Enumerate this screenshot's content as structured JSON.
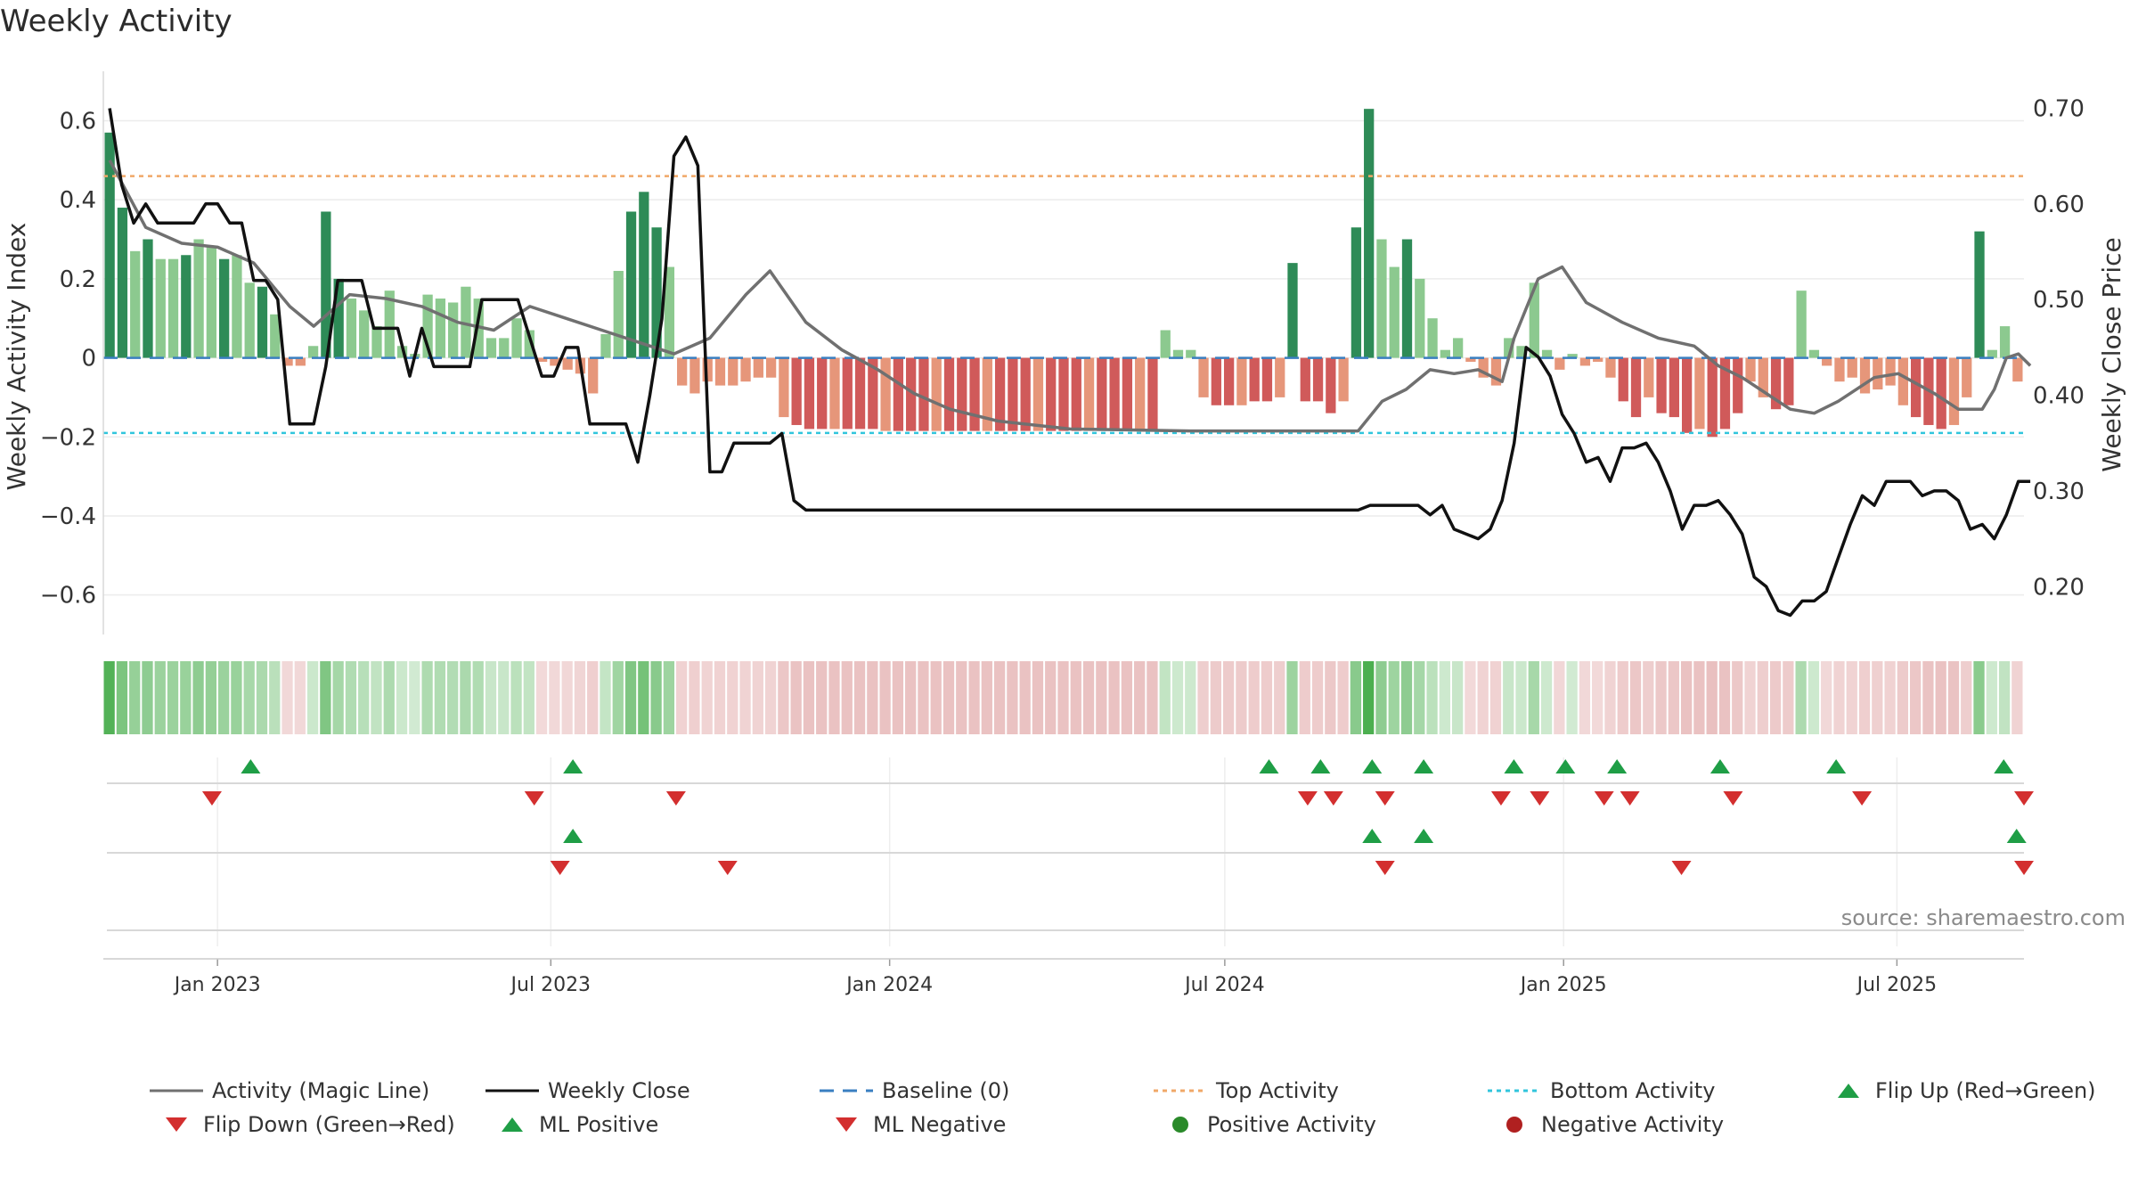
{
  "title": "Weekly Activity",
  "source_text": "source: sharemaestro.com",
  "colors": {
    "green_strong": "#2e8b57",
    "green_light": "#8cc98f",
    "red_strong": "#d05a5a",
    "red_light": "#e6967a",
    "magic_line": "#707070",
    "close_line": "#111111",
    "baseline": "#3a7fc1",
    "top_line": "#f0a868",
    "bottom_line": "#31c5dc",
    "flip_up": "#1f9e46",
    "flip_down": "#d32f2f"
  },
  "legend": [
    {
      "key": "magic",
      "label": "Activity (Magic Line)"
    },
    {
      "key": "close",
      "label": "Weekly Close"
    },
    {
      "key": "baseline",
      "label": "Baseline (0)"
    },
    {
      "key": "top",
      "label": "Top Activity"
    },
    {
      "key": "bottom",
      "label": "Bottom Activity"
    },
    {
      "key": "flipup",
      "label": "Flip Up (Red→Green)"
    },
    {
      "key": "flipdown",
      "label": "Flip Down (Green→Red)"
    },
    {
      "key": "mlpos",
      "label": "ML Positive"
    },
    {
      "key": "mlneg",
      "label": "ML Negative"
    },
    {
      "key": "posact",
      "label": "Positive Activity"
    },
    {
      "key": "negact",
      "label": "Negative Activity"
    }
  ],
  "chart_data": {
    "type": "bar",
    "title": "Weekly Activity",
    "ylabel": "Weekly Activity Index",
    "y2label": "Weekly Close Price",
    "ylim": [
      -0.7,
      0.68
    ],
    "y2lim": [
      0.15,
      0.72
    ],
    "yticks": [
      0.6,
      0.4,
      0.2,
      0,
      -0.2,
      -0.4,
      -0.6
    ],
    "ytick_labels": [
      "0.6",
      "0.4",
      "0.2",
      "0",
      "−0.2",
      "−0.4",
      "−0.6"
    ],
    "y2ticks": [
      0.7,
      0.6,
      0.5,
      0.4,
      0.3,
      0.2
    ],
    "y2tick_labels": [
      "0.70",
      "0.60",
      "0.50",
      "0.40",
      "0.30",
      "0.20"
    ],
    "x_range": [
      "2022-10-31",
      "2025-09-08"
    ],
    "xticks": [
      "2023-01-01",
      "2023-07-01",
      "2024-01-01",
      "2024-07-01",
      "2025-01-01",
      "2025-07-01"
    ],
    "xtick_labels": [
      "Jan 2023",
      "Jul 2023",
      "Jan 2024",
      "Jul 2024",
      "Jan 2025",
      "Jul 2025"
    ],
    "top_activity": 0.46,
    "bottom_activity": -0.19,
    "baseline": 0,
    "week_count": 158,
    "activity_segments": [
      [
        0.57,
        0.38,
        0.27,
        0.3,
        0.25,
        0.25,
        0.26,
        0.3,
        0.28,
        0.25,
        0.26,
        0.19,
        0.18,
        0.11
      ],
      [
        -0.02,
        -0.02,
        0.03,
        0.37,
        0.2,
        0.15,
        0.12,
        0.08,
        0.17,
        0.03,
        0.01
      ],
      [
        0.16,
        0.15,
        0.14,
        0.18,
        0.15,
        0.05,
        0.05,
        0.1,
        0.07
      ],
      [
        -0.01,
        -0.02,
        -0.03,
        -0.04,
        -0.09,
        0.06,
        0.22,
        0.37,
        0.42,
        0.33,
        0.23
      ],
      [
        -0.07,
        -0.09,
        -0.06,
        -0.07,
        -0.07,
        -0.06,
        -0.05,
        -0.05,
        -0.15,
        -0.17,
        -0.18,
        -0.18,
        -0.18,
        -0.18,
        -0.18,
        -0.18
      ],
      "flat:-0.185:22",
      [
        0.07,
        0.02,
        0.02,
        -0.1,
        -0.12,
        -0.12,
        -0.12,
        -0.11,
        -0.11,
        -0.1,
        0.24,
        -0.11,
        -0.11,
        -0.14,
        -0.11,
        0.33,
        0.63,
        0.3,
        0.23,
        0.3,
        0.2,
        0.1,
        0.02,
        0.05,
        -0.01
      ],
      [
        -0.05,
        -0.07,
        0.05,
        0.03,
        0.19,
        0.02,
        -0.03,
        0.01,
        -0.02,
        -0.01,
        -0.05,
        -0.11,
        -0.15,
        -0.1,
        -0.14,
        -0.15,
        -0.19,
        -0.18,
        -0.2,
        -0.18,
        -0.14,
        -0.06,
        -0.1,
        -0.13,
        -0.12,
        0.17,
        0.02,
        -0.02,
        -0.06,
        -0.05,
        -0.09,
        -0.08,
        -0.07,
        -0.12,
        -0.15,
        -0.17,
        -0.18,
        -0.17,
        -0.1,
        0.32,
        0.02,
        0.08,
        -0.06
      ]
    ],
    "magic_line": [
      {
        "week": 0,
        "v": 0.5
      },
      {
        "week": 3,
        "v": 0.33
      },
      {
        "week": 6,
        "v": 0.29
      },
      {
        "week": 9,
        "v": 0.28
      },
      {
        "week": 12,
        "v": 0.24
      },
      {
        "week": 15,
        "v": 0.13
      },
      {
        "week": 17,
        "v": 0.08
      },
      {
        "week": 20,
        "v": 0.16
      },
      {
        "week": 23,
        "v": 0.15
      },
      {
        "week": 26,
        "v": 0.13
      },
      {
        "week": 29,
        "v": 0.09
      },
      {
        "week": 32,
        "v": 0.07
      },
      {
        "week": 35,
        "v": 0.13
      },
      {
        "week": 38,
        "v": 0.1
      },
      {
        "week": 41,
        "v": 0.07
      },
      {
        "week": 44,
        "v": 0.04
      },
      {
        "week": 47,
        "v": 0.01
      },
      {
        "week": 50,
        "v": 0.05
      },
      {
        "week": 53,
        "v": 0.16
      },
      {
        "week": 55,
        "v": 0.22
      },
      {
        "week": 58,
        "v": 0.09
      },
      {
        "week": 61,
        "v": 0.02
      },
      {
        "week": 64,
        "v": -0.03
      },
      {
        "week": 67,
        "v": -0.09
      },
      {
        "week": 70,
        "v": -0.13
      },
      {
        "week": 74,
        "v": -0.16
      },
      {
        "week": 80,
        "v": -0.18
      },
      {
        "week": 90,
        "v": -0.185
      },
      {
        "week": 104,
        "v": -0.185
      },
      {
        "week": 106,
        "v": -0.11
      },
      {
        "week": 108,
        "v": -0.08
      },
      {
        "week": 110,
        "v": -0.03
      },
      {
        "week": 112,
        "v": -0.04
      },
      {
        "week": 114,
        "v": -0.03
      },
      {
        "week": 116,
        "v": -0.06
      },
      {
        "week": 117,
        "v": 0.05
      },
      {
        "week": 119,
        "v": 0.2
      },
      {
        "week": 121,
        "v": 0.23
      },
      {
        "week": 123,
        "v": 0.14
      },
      {
        "week": 126,
        "v": 0.09
      },
      {
        "week": 129,
        "v": 0.05
      },
      {
        "week": 132,
        "v": 0.03
      },
      {
        "week": 134,
        "v": -0.02
      },
      {
        "week": 136,
        "v": -0.05
      },
      {
        "week": 138,
        "v": -0.09
      },
      {
        "week": 140,
        "v": -0.13
      },
      {
        "week": 142,
        "v": -0.14
      },
      {
        "week": 144,
        "v": -0.11
      },
      {
        "week": 147,
        "v": -0.05
      },
      {
        "week": 149,
        "v": -0.04
      },
      {
        "week": 152,
        "v": -0.09
      },
      {
        "week": 154,
        "v": -0.13
      },
      {
        "week": 156,
        "v": -0.13
      },
      {
        "week": 157,
        "v": -0.08
      },
      {
        "week": 158,
        "v": 0.0
      },
      {
        "week": 159,
        "v": 0.01
      },
      {
        "week": 160,
        "v": -0.02
      }
    ],
    "weekly_close": [
      {
        "week": 0,
        "v": 0.7
      },
      {
        "week": 1,
        "v": 0.62
      },
      {
        "week": 2,
        "v": 0.58
      },
      {
        "week": 3,
        "v": 0.6
      },
      {
        "week": 4,
        "v": 0.58
      },
      {
        "week": 7,
        "v": 0.58
      },
      {
        "week": 8,
        "v": 0.6
      },
      {
        "week": 9,
        "v": 0.6
      },
      {
        "week": 10,
        "v": 0.58
      },
      {
        "week": 11,
        "v": 0.58
      },
      {
        "week": 12,
        "v": 0.52
      },
      {
        "week": 13,
        "v": 0.52
      },
      {
        "week": 14,
        "v": 0.5
      },
      {
        "week": 15,
        "v": 0.37
      },
      {
        "week": 17,
        "v": 0.37
      },
      {
        "week": 18,
        "v": 0.43
      },
      {
        "week": 19,
        "v": 0.52
      },
      {
        "week": 20,
        "v": 0.52
      },
      {
        "week": 21,
        "v": 0.52
      },
      {
        "week": 22,
        "v": 0.47
      },
      {
        "week": 24,
        "v": 0.47
      },
      {
        "week": 25,
        "v": 0.42
      },
      {
        "week": 26,
        "v": 0.47
      },
      {
        "week": 27,
        "v": 0.43
      },
      {
        "week": 28,
        "v": 0.43
      },
      {
        "week": 30,
        "v": 0.43
      },
      {
        "week": 31,
        "v": 0.5
      },
      {
        "week": 34,
        "v": 0.5
      },
      {
        "week": 35,
        "v": 0.46
      },
      {
        "week": 36,
        "v": 0.42
      },
      {
        "week": 37,
        "v": 0.42
      },
      {
        "week": 38,
        "v": 0.45
      },
      {
        "week": 39,
        "v": 0.45
      },
      {
        "week": 40,
        "v": 0.37
      },
      {
        "week": 43,
        "v": 0.37
      },
      {
        "week": 44,
        "v": 0.33
      },
      {
        "week": 45,
        "v": 0.4
      },
      {
        "week": 46,
        "v": 0.48
      },
      {
        "week": 47,
        "v": 0.65
      },
      {
        "week": 48,
        "v": 0.67
      },
      {
        "week": 49,
        "v": 0.64
      },
      {
        "week": 50,
        "v": 0.32
      },
      {
        "week": 51,
        "v": 0.32
      },
      {
        "week": 52,
        "v": 0.35
      },
      {
        "week": 55,
        "v": 0.35
      },
      {
        "week": 56,
        "v": 0.36
      },
      {
        "week": 57,
        "v": 0.29
      },
      {
        "week": 58,
        "v": 0.28
      },
      {
        "week": 104,
        "v": 0.28
      },
      {
        "week": 105,
        "v": 0.285
      },
      {
        "week": 109,
        "v": 0.285
      },
      {
        "week": 110,
        "v": 0.275
      },
      {
        "week": 111,
        "v": 0.285
      },
      {
        "week": 112,
        "v": 0.26
      },
      {
        "week": 114,
        "v": 0.25
      },
      {
        "week": 115,
        "v": 0.26
      },
      {
        "week": 116,
        "v": 0.29
      },
      {
        "week": 117,
        "v": 0.35
      },
      {
        "week": 118,
        "v": 0.45
      },
      {
        "week": 119,
        "v": 0.44
      },
      {
        "week": 120,
        "v": 0.42
      },
      {
        "week": 121,
        "v": 0.38
      },
      {
        "week": 122,
        "v": 0.36
      },
      {
        "week": 123,
        "v": 0.33
      },
      {
        "week": 124,
        "v": 0.335
      },
      {
        "week": 125,
        "v": 0.31
      },
      {
        "week": 126,
        "v": 0.345
      },
      {
        "week": 127,
        "v": 0.345
      },
      {
        "week": 128,
        "v": 0.35
      },
      {
        "week": 129,
        "v": 0.33
      },
      {
        "week": 130,
        "v": 0.3
      },
      {
        "week": 131,
        "v": 0.26
      },
      {
        "week": 132,
        "v": 0.285
      },
      {
        "week": 133,
        "v": 0.285
      },
      {
        "week": 134,
        "v": 0.29
      },
      {
        "week": 135,
        "v": 0.275
      },
      {
        "week": 136,
        "v": 0.255
      },
      {
        "week": 137,
        "v": 0.21
      },
      {
        "week": 138,
        "v": 0.2
      },
      {
        "week": 139,
        "v": 0.175
      },
      {
        "week": 140,
        "v": 0.17
      },
      {
        "week": 141,
        "v": 0.185
      },
      {
        "week": 142,
        "v": 0.185
      },
      {
        "week": 143,
        "v": 0.195
      },
      {
        "week": 144,
        "v": 0.23
      },
      {
        "week": 145,
        "v": 0.265
      },
      {
        "week": 146,
        "v": 0.295
      },
      {
        "week": 147,
        "v": 0.285
      },
      {
        "week": 148,
        "v": 0.31
      },
      {
        "week": 150,
        "v": 0.31
      },
      {
        "week": 151,
        "v": 0.295
      },
      {
        "week": 152,
        "v": 0.3
      },
      {
        "week": 153,
        "v": 0.3
      },
      {
        "week": 154,
        "v": 0.29
      },
      {
        "week": 155,
        "v": 0.26
      },
      {
        "week": 156,
        "v": 0.265
      },
      {
        "week": 157,
        "v": 0.25
      },
      {
        "week": 158,
        "v": 0.275
      },
      {
        "week": 159,
        "v": 0.31
      },
      {
        "week": 160,
        "v": 0.31
      }
    ],
    "flip_up_dates": [
      "2023-01-19",
      "2023-07-13",
      "2024-07-25",
      "2024-08-22",
      "2024-09-19",
      "2024-10-17",
      "2024-12-05",
      "2025-01-02",
      "2025-01-30",
      "2025-03-27",
      "2025-05-29",
      "2025-08-28"
    ],
    "flip_down_dates": [
      "2022-12-29",
      "2023-06-22",
      "2023-09-07",
      "2024-08-15",
      "2024-08-29",
      "2024-09-26",
      "2024-11-28",
      "2024-12-19",
      "2025-01-23",
      "2025-02-06",
      "2025-04-03",
      "2025-06-12",
      "2025-09-08"
    ],
    "ml_positive_dates": [
      "2023-07-13",
      "2024-09-19",
      "2024-10-17",
      "2025-09-04"
    ],
    "ml_negative_dates": [
      "2023-07-06",
      "2023-10-05",
      "2024-09-26",
      "2025-03-06",
      "2025-09-08"
    ]
  }
}
